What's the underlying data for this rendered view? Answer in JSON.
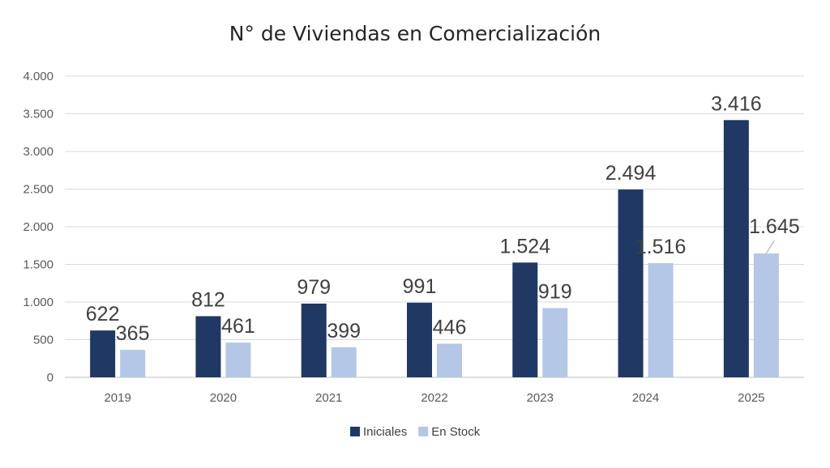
{
  "chart_data": {
    "type": "bar",
    "title": "N° de Viviendas en Comercialización",
    "xlabel": "",
    "ylabel": "",
    "categories": [
      "2019",
      "2020",
      "2021",
      "2022",
      "2023",
      "2024",
      "2025"
    ],
    "series": [
      {
        "name": "Iniciales",
        "color": "#1f3864",
        "values": [
          622,
          812,
          979,
          991,
          1524,
          2494,
          3416
        ],
        "labels": [
          "622",
          "812",
          "979",
          "991",
          "1.524",
          "2.494",
          "3.416"
        ]
      },
      {
        "name": "En Stock",
        "color": "#b4c7e7",
        "values": [
          365,
          461,
          399,
          446,
          919,
          1516,
          1645
        ],
        "labels": [
          "365",
          "461",
          "399",
          "446",
          "919",
          "1.516",
          "1.645"
        ]
      }
    ],
    "ylim": [
      0,
      4000
    ],
    "yticks": [
      0,
      500,
      1000,
      1500,
      2000,
      2500,
      3000,
      3500,
      4000
    ],
    "ytick_labels": [
      "0",
      "500",
      "1.000",
      "1.500",
      "2.000",
      "2.500",
      "3.000",
      "3.500",
      "4.000"
    ],
    "grid": true,
    "legend_position": "bottom"
  }
}
